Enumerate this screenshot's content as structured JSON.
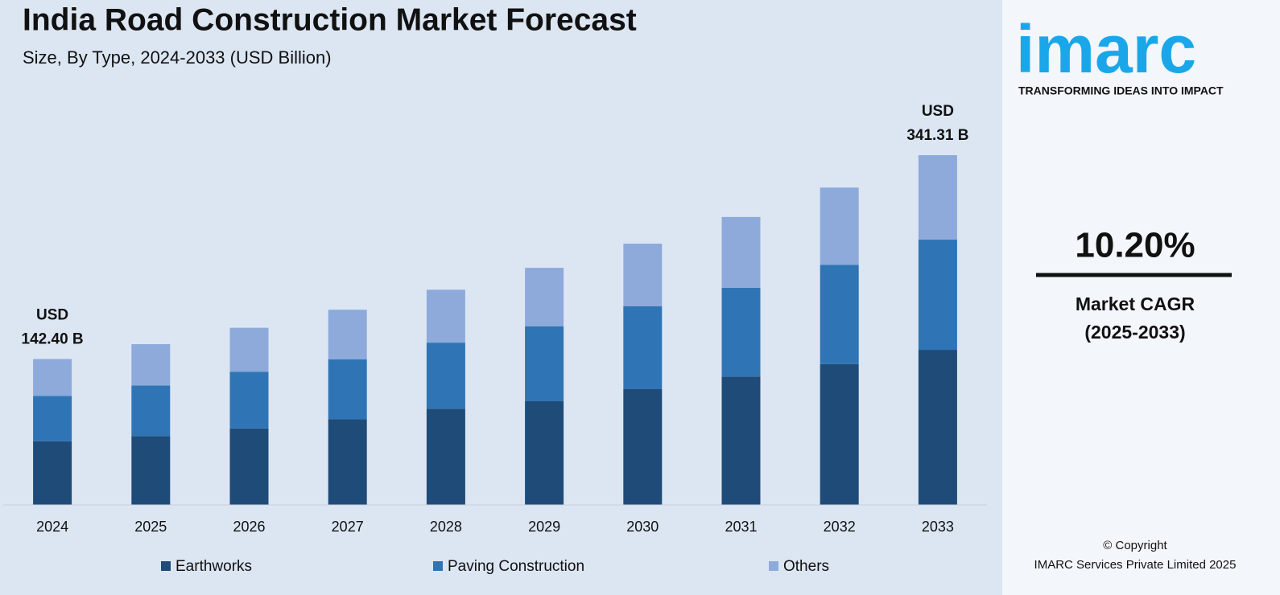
{
  "chart_data": {
    "type": "stacked_bar",
    "title": "India Road Construction Market Forecast",
    "subtitle": "Size, By Type, 2024-2033 (USD Billion)",
    "categories": [
      "2024",
      "2025",
      "2026",
      "2027",
      "2028",
      "2029",
      "2030",
      "2031",
      "2032",
      "2033"
    ],
    "series": [
      {
        "name": "Earthworks",
        "color": "#1f4b78",
        "values": [
          62.2,
          67.3,
          74.7,
          83.8,
          93.9,
          101.2,
          113.0,
          125.3,
          137.5,
          151.4
        ]
      },
      {
        "name": "Paving Construction",
        "color": "#2f75b5",
        "values": [
          44.2,
          49.3,
          55.3,
          58.4,
          64.5,
          73.2,
          81.0,
          86.6,
          96.7,
          107.5
        ]
      },
      {
        "name": "Others",
        "color": "#8eaadb",
        "values": [
          36.0,
          40.3,
          42.9,
          48.3,
          51.6,
          57.0,
          61.0,
          69.1,
          75.5,
          82.41
        ]
      }
    ],
    "annotations": [
      {
        "category": "2024",
        "lines": [
          "USD",
          "142.40 B"
        ]
      },
      {
        "category": "2033",
        "lines": [
          "USD",
          "341.31 B"
        ]
      }
    ],
    "legend": "bottom"
  },
  "side": {
    "logo": "imarc",
    "tagline": "TRANSFORMING IDEAS INTO IMPACT",
    "cagr": "10.20%",
    "cagr_label": "Market CAGR",
    "cagr_period": "(2025-2033)",
    "copyright": "© Copyright",
    "company": "IMARC Services Private Limited 2025"
  }
}
